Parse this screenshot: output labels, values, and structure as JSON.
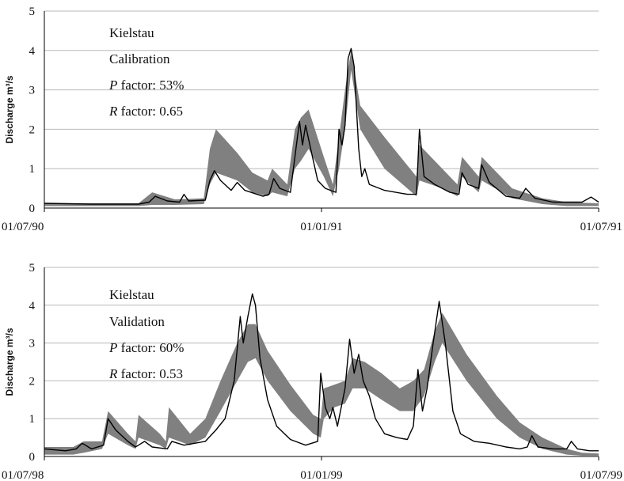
{
  "chart_data": [
    {
      "type": "line",
      "ylabel": "Discharge m³/s",
      "ylim": [
        0,
        5
      ],
      "yticks": [
        "0",
        "1",
        "2",
        "3",
        "4",
        "5"
      ],
      "xlim": [
        "1990-07-01",
        "1991-07-01"
      ],
      "xticks": [
        "01/07/90",
        "01/01/91",
        "01/07/91"
      ],
      "grid": "horizontal",
      "annotations": {
        "station": "Kielstau",
        "period": "Calibration",
        "p_letter": "P",
        "p_text": " factor: 53%",
        "r_letter": "R",
        "r_text": " factor: 0.65"
      },
      "band_color": "#808080",
      "line_color": "#000000",
      "band": [
        {
          "x": "1990-07-01",
          "lo": 0.05,
          "hi": 0.12
        },
        {
          "x": "1990-09-01",
          "lo": 0.05,
          "hi": 0.12
        },
        {
          "x": "1990-09-10",
          "lo": 0.08,
          "hi": 0.4
        },
        {
          "x": "1990-09-25",
          "lo": 0.08,
          "hi": 0.22
        },
        {
          "x": "1990-10-14",
          "lo": 0.1,
          "hi": 0.25
        },
        {
          "x": "1990-10-18",
          "lo": 0.6,
          "hi": 1.5
        },
        {
          "x": "1990-10-22",
          "lo": 0.9,
          "hi": 2.0
        },
        {
          "x": "1990-11-05",
          "lo": 0.7,
          "hi": 1.4
        },
        {
          "x": "1990-11-15",
          "lo": 0.4,
          "hi": 0.9
        },
        {
          "x": "1990-11-25",
          "lo": 0.3,
          "hi": 0.7
        },
        {
          "x": "1990-11-28",
          "lo": 0.4,
          "hi": 1.0
        },
        {
          "x": "1990-12-08",
          "lo": 0.3,
          "hi": 0.6
        },
        {
          "x": "1990-12-13",
          "lo": 1.0,
          "hi": 2.0
        },
        {
          "x": "1990-12-17",
          "lo": 1.2,
          "hi": 2.3
        },
        {
          "x": "1990-12-22",
          "lo": 1.5,
          "hi": 2.5
        },
        {
          "x": "1991-01-01",
          "lo": 0.8,
          "hi": 1.3
        },
        {
          "x": "1991-01-07",
          "lo": 0.3,
          "hi": 0.6
        },
        {
          "x": "1991-01-11",
          "lo": 1.0,
          "hi": 1.8
        },
        {
          "x": "1991-01-15",
          "lo": 2.0,
          "hi": 3.0
        },
        {
          "x": "1991-01-19",
          "lo": 3.5,
          "hi": 4.0
        },
        {
          "x": "1991-01-25",
          "lo": 2.0,
          "hi": 2.6
        },
        {
          "x": "1991-02-10",
          "lo": 1.0,
          "hi": 1.8
        },
        {
          "x": "1991-03-03",
          "lo": 0.3,
          "hi": 0.8
        },
        {
          "x": "1991-03-05",
          "lo": 0.7,
          "hi": 1.6
        },
        {
          "x": "1991-03-20",
          "lo": 0.5,
          "hi": 1.0
        },
        {
          "x": "1991-03-30",
          "lo": 0.3,
          "hi": 0.6
        },
        {
          "x": "1991-04-02",
          "lo": 0.8,
          "hi": 1.3
        },
        {
          "x": "1991-04-13",
          "lo": 0.4,
          "hi": 0.8
        },
        {
          "x": "1991-04-15",
          "lo": 0.7,
          "hi": 1.3
        },
        {
          "x": "1991-05-05",
          "lo": 0.25,
          "hi": 0.5
        },
        {
          "x": "1991-05-25",
          "lo": 0.1,
          "hi": 0.25
        },
        {
          "x": "1991-06-10",
          "lo": 0.05,
          "hi": 0.15
        },
        {
          "x": "1991-07-01",
          "lo": 0.05,
          "hi": 0.12
        }
      ],
      "observed": [
        {
          "x": "1990-07-01",
          "y": 0.12
        },
        {
          "x": "1990-08-01",
          "y": 0.1
        },
        {
          "x": "1990-09-01",
          "y": 0.1
        },
        {
          "x": "1990-09-08",
          "y": 0.15
        },
        {
          "x": "1990-09-12",
          "y": 0.3
        },
        {
          "x": "1990-09-20",
          "y": 0.18
        },
        {
          "x": "1990-09-28",
          "y": 0.15
        },
        {
          "x": "1990-10-01",
          "y": 0.35
        },
        {
          "x": "1990-10-04",
          "y": 0.18
        },
        {
          "x": "1990-10-15",
          "y": 0.2
        },
        {
          "x": "1990-10-18",
          "y": 0.7
        },
        {
          "x": "1990-10-21",
          "y": 0.95
        },
        {
          "x": "1990-10-25",
          "y": 0.7
        },
        {
          "x": "1990-11-01",
          "y": 0.45
        },
        {
          "x": "1990-11-05",
          "y": 0.65
        },
        {
          "x": "1990-11-10",
          "y": 0.45
        },
        {
          "x": "1990-11-22",
          "y": 0.3
        },
        {
          "x": "1990-11-26",
          "y": 0.35
        },
        {
          "x": "1990-11-29",
          "y": 0.75
        },
        {
          "x": "1990-12-03",
          "y": 0.5
        },
        {
          "x": "1990-12-10",
          "y": 0.4
        },
        {
          "x": "1990-12-13",
          "y": 1.3
        },
        {
          "x": "1990-12-16",
          "y": 2.2
        },
        {
          "x": "1990-12-18",
          "y": 1.6
        },
        {
          "x": "1990-12-20",
          "y": 2.1
        },
        {
          "x": "1990-12-24",
          "y": 1.4
        },
        {
          "x": "1990-12-28",
          "y": 0.7
        },
        {
          "x": "1991-01-02",
          "y": 0.5
        },
        {
          "x": "1991-01-09",
          "y": 0.4
        },
        {
          "x": "1991-01-11",
          "y": 2.0
        },
        {
          "x": "1991-01-13",
          "y": 1.6
        },
        {
          "x": "1991-01-15",
          "y": 2.1
        },
        {
          "x": "1991-01-17",
          "y": 3.8
        },
        {
          "x": "1991-01-19",
          "y": 4.05
        },
        {
          "x": "1991-01-21",
          "y": 3.6
        },
        {
          "x": "1991-01-24",
          "y": 1.5
        },
        {
          "x": "1991-01-26",
          "y": 0.8
        },
        {
          "x": "1991-01-28",
          "y": 1.0
        },
        {
          "x": "1991-01-31",
          "y": 0.6
        },
        {
          "x": "1991-02-10",
          "y": 0.45
        },
        {
          "x": "1991-02-25",
          "y": 0.35
        },
        {
          "x": "1991-03-03",
          "y": 0.35
        },
        {
          "x": "1991-03-05",
          "y": 2.0
        },
        {
          "x": "1991-03-08",
          "y": 0.8
        },
        {
          "x": "1991-03-15",
          "y": 0.6
        },
        {
          "x": "1991-03-25",
          "y": 0.4
        },
        {
          "x": "1991-03-31",
          "y": 0.35
        },
        {
          "x": "1991-04-02",
          "y": 0.9
        },
        {
          "x": "1991-04-06",
          "y": 0.6
        },
        {
          "x": "1991-04-13",
          "y": 0.5
        },
        {
          "x": "1991-04-15",
          "y": 1.1
        },
        {
          "x": "1991-04-20",
          "y": 0.65
        },
        {
          "x": "1991-05-01",
          "y": 0.3
        },
        {
          "x": "1991-05-10",
          "y": 0.25
        },
        {
          "x": "1991-05-14",
          "y": 0.5
        },
        {
          "x": "1991-05-20",
          "y": 0.25
        },
        {
          "x": "1991-06-01",
          "y": 0.15
        },
        {
          "x": "1991-06-20",
          "y": 0.15
        },
        {
          "x": "1991-06-26",
          "y": 0.28
        },
        {
          "x": "1991-07-01",
          "y": 0.15
        }
      ]
    },
    {
      "type": "line",
      "ylabel": "Discharge m³/s",
      "ylim": [
        0,
        5
      ],
      "yticks": [
        "0",
        "1",
        "2",
        "3",
        "4",
        "5"
      ],
      "xlim": [
        "1998-07-01",
        "1999-07-01"
      ],
      "xticks": [
        "01/07/98",
        "01/01/99",
        "01/07/99"
      ],
      "grid": "horizontal",
      "annotations": {
        "station": "Kielstau",
        "period": "Validation",
        "p_letter": "P",
        "p_text": " factor: 60%",
        "r_letter": "R",
        "r_text": " factor: 0.53"
      },
      "band_color": "#808080",
      "line_color": "#000000",
      "band": [
        {
          "x": "1998-07-01",
          "lo": 0.05,
          "hi": 0.25
        },
        {
          "x": "1998-07-20",
          "lo": 0.05,
          "hi": 0.25
        },
        {
          "x": "1998-07-27",
          "lo": 0.1,
          "hi": 0.4
        },
        {
          "x": "1998-08-08",
          "lo": 0.2,
          "hi": 0.4
        },
        {
          "x": "1998-08-12",
          "lo": 0.6,
          "hi": 1.2
        },
        {
          "x": "1998-08-25",
          "lo": 0.3,
          "hi": 0.6
        },
        {
          "x": "1998-08-30",
          "lo": 0.2,
          "hi": 0.4
        },
        {
          "x": "1998-09-01",
          "lo": 0.5,
          "hi": 1.1
        },
        {
          "x": "1998-09-15",
          "lo": 0.3,
          "hi": 0.6
        },
        {
          "x": "1998-09-19",
          "lo": 0.2,
          "hi": 0.4
        },
        {
          "x": "1998-09-21",
          "lo": 0.5,
          "hi": 1.3
        },
        {
          "x": "1998-10-05",
          "lo": 0.3,
          "hi": 0.6
        },
        {
          "x": "1998-10-15",
          "lo": 0.5,
          "hi": 1.0
        },
        {
          "x": "1998-10-25",
          "lo": 1.2,
          "hi": 2.0
        },
        {
          "x": "1998-11-05",
          "lo": 2.0,
          "hi": 3.0
        },
        {
          "x": "1998-11-12",
          "lo": 2.5,
          "hi": 3.5
        },
        {
          "x": "1998-11-17",
          "lo": 2.6,
          "hi": 3.5
        },
        {
          "x": "1998-11-25",
          "lo": 2.0,
          "hi": 2.8
        },
        {
          "x": "1998-12-10",
          "lo": 1.2,
          "hi": 1.9
        },
        {
          "x": "1998-12-25",
          "lo": 0.6,
          "hi": 1.1
        },
        {
          "x": "1998-12-30",
          "lo": 0.5,
          "hi": 1.0
        },
        {
          "x": "1999-01-01",
          "lo": 1.0,
          "hi": 1.8
        },
        {
          "x": "1999-01-08",
          "lo": 1.3,
          "hi": 1.9
        },
        {
          "x": "1999-01-15",
          "lo": 1.4,
          "hi": 2.0
        },
        {
          "x": "1999-01-20",
          "lo": 1.8,
          "hi": 2.6
        },
        {
          "x": "1999-01-28",
          "lo": 1.8,
          "hi": 2.5
        },
        {
          "x": "1999-02-08",
          "lo": 1.5,
          "hi": 2.2
        },
        {
          "x": "1999-02-20",
          "lo": 1.2,
          "hi": 1.8
        },
        {
          "x": "1999-03-01",
          "lo": 1.2,
          "hi": 2.0
        },
        {
          "x": "1999-03-08",
          "lo": 1.6,
          "hi": 2.3
        },
        {
          "x": "1999-03-15",
          "lo": 2.5,
          "hi": 3.3
        },
        {
          "x": "1999-03-20",
          "lo": 3.0,
          "hi": 3.8
        },
        {
          "x": "1999-04-05",
          "lo": 2.0,
          "hi": 2.7
        },
        {
          "x": "1999-04-25",
          "lo": 1.0,
          "hi": 1.6
        },
        {
          "x": "1999-05-10",
          "lo": 0.5,
          "hi": 0.9
        },
        {
          "x": "1999-05-25",
          "lo": 0.2,
          "hi": 0.5
        },
        {
          "x": "1999-06-10",
          "lo": 0.05,
          "hi": 0.2
        },
        {
          "x": "1999-06-20",
          "lo": 0.02,
          "hi": 0.1
        },
        {
          "x": "1999-07-01",
          "lo": 0.02,
          "hi": 0.08
        }
      ],
      "observed": [
        {
          "x": "1998-07-01",
          "y": 0.2
        },
        {
          "x": "1998-07-15",
          "y": 0.15
        },
        {
          "x": "1998-07-22",
          "y": 0.2
        },
        {
          "x": "1998-07-26",
          "y": 0.35
        },
        {
          "x": "1998-08-01",
          "y": 0.2
        },
        {
          "x": "1998-08-09",
          "y": 0.3
        },
        {
          "x": "1998-08-12",
          "y": 1.0
        },
        {
          "x": "1998-08-17",
          "y": 0.7
        },
        {
          "x": "1998-08-25",
          "y": 0.4
        },
        {
          "x": "1998-08-30",
          "y": 0.25
        },
        {
          "x": "1998-09-01",
          "y": 0.3
        },
        {
          "x": "1998-09-05",
          "y": 0.4
        },
        {
          "x": "1998-09-10",
          "y": 0.25
        },
        {
          "x": "1998-09-20",
          "y": 0.2
        },
        {
          "x": "1998-09-23",
          "y": 0.4
        },
        {
          "x": "1998-10-01",
          "y": 0.3
        },
        {
          "x": "1998-10-15",
          "y": 0.4
        },
        {
          "x": "1998-10-22",
          "y": 0.7
        },
        {
          "x": "1998-10-28",
          "y": 1.0
        },
        {
          "x": "1998-11-03",
          "y": 2.0
        },
        {
          "x": "1998-11-07",
          "y": 3.7
        },
        {
          "x": "1998-11-09",
          "y": 3.0
        },
        {
          "x": "1998-11-12",
          "y": 3.7
        },
        {
          "x": "1998-11-15",
          "y": 4.3
        },
        {
          "x": "1998-11-17",
          "y": 4.0
        },
        {
          "x": "1998-11-20",
          "y": 2.6
        },
        {
          "x": "1998-11-25",
          "y": 1.5
        },
        {
          "x": "1998-12-01",
          "y": 0.8
        },
        {
          "x": "1998-12-10",
          "y": 0.45
        },
        {
          "x": "1998-12-20",
          "y": 0.3
        },
        {
          "x": "1998-12-28",
          "y": 0.4
        },
        {
          "x": "1998-12-30",
          "y": 2.2
        },
        {
          "x": "1999-01-02",
          "y": 1.3
        },
        {
          "x": "1999-01-05",
          "y": 1.0
        },
        {
          "x": "1999-01-07",
          "y": 1.3
        },
        {
          "x": "1999-01-10",
          "y": 0.8
        },
        {
          "x": "1999-01-15",
          "y": 1.8
        },
        {
          "x": "1999-01-18",
          "y": 3.1
        },
        {
          "x": "1999-01-21",
          "y": 2.2
        },
        {
          "x": "1999-01-24",
          "y": 2.7
        },
        {
          "x": "1999-01-27",
          "y": 2.0
        },
        {
          "x": "1999-01-31",
          "y": 1.6
        },
        {
          "x": "1999-02-04",
          "y": 1.0
        },
        {
          "x": "1999-02-10",
          "y": 0.6
        },
        {
          "x": "1999-02-18",
          "y": 0.5
        },
        {
          "x": "1999-02-25",
          "y": 0.45
        },
        {
          "x": "1999-03-01",
          "y": 0.8
        },
        {
          "x": "1999-03-04",
          "y": 2.3
        },
        {
          "x": "1999-03-07",
          "y": 1.2
        },
        {
          "x": "1999-03-10",
          "y": 1.8
        },
        {
          "x": "1999-03-14",
          "y": 3.0
        },
        {
          "x": "1999-03-18",
          "y": 4.1
        },
        {
          "x": "1999-03-22",
          "y": 3.0
        },
        {
          "x": "1999-03-27",
          "y": 1.2
        },
        {
          "x": "1999-04-01",
          "y": 0.6
        },
        {
          "x": "1999-04-10",
          "y": 0.4
        },
        {
          "x": "1999-04-20",
          "y": 0.35
        },
        {
          "x": "1999-05-01",
          "y": 0.25
        },
        {
          "x": "1999-05-10",
          "y": 0.2
        },
        {
          "x": "1999-05-15",
          "y": 0.25
        },
        {
          "x": "1999-05-18",
          "y": 0.55
        },
        {
          "x": "1999-05-22",
          "y": 0.25
        },
        {
          "x": "1999-06-01",
          "y": 0.2
        },
        {
          "x": "1999-06-10",
          "y": 0.2
        },
        {
          "x": "1999-06-13",
          "y": 0.4
        },
        {
          "x": "1999-06-17",
          "y": 0.2
        },
        {
          "x": "1999-06-25",
          "y": 0.15
        },
        {
          "x": "1999-07-01",
          "y": 0.15
        }
      ]
    }
  ]
}
